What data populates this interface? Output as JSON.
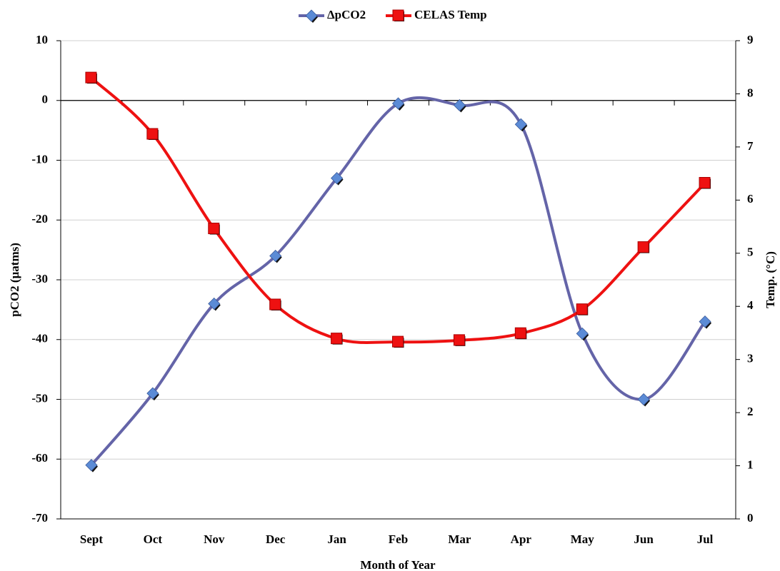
{
  "chart_data": {
    "type": "line",
    "x_label": "Month of Year",
    "y_label": "pCO2 (µatms)",
    "y2_label": "Temp. (°C)",
    "categories": [
      "Sept",
      "Oct",
      "Nov",
      "Dec",
      "Jan",
      "Feb",
      "Mar",
      "Apr",
      "May",
      "Jun",
      "Jul"
    ],
    "series": [
      {
        "name": "ΔpCO2",
        "color": "#6464a8",
        "marker_color": "#5b8bd6",
        "marker": "diamond",
        "values": [
          -61,
          -49,
          -34,
          -26,
          -13,
          -0.5,
          -0.8,
          -4,
          -39,
          -50,
          -37
        ]
      },
      {
        "name": "CELAS Temp",
        "color": "#ee1111",
        "marker_color": "#ee1111",
        "marker": "square",
        "axis": "y2",
        "values": [
          8.3,
          7.24,
          5.46,
          4.03,
          3.39,
          3.33,
          3.36,
          3.49,
          3.94,
          5.11,
          6.32
        ]
      }
    ],
    "ylim": [
      -70,
      10
    ],
    "yticks": [
      -70,
      -60,
      -50,
      -40,
      -30,
      -20,
      -10,
      0,
      10
    ],
    "y2lim": [
      0,
      9
    ],
    "y2ticks": [
      0,
      1,
      2,
      3,
      4,
      5,
      6,
      7,
      8,
      9
    ],
    "grid": true,
    "smooth": true,
    "legend": "top"
  }
}
